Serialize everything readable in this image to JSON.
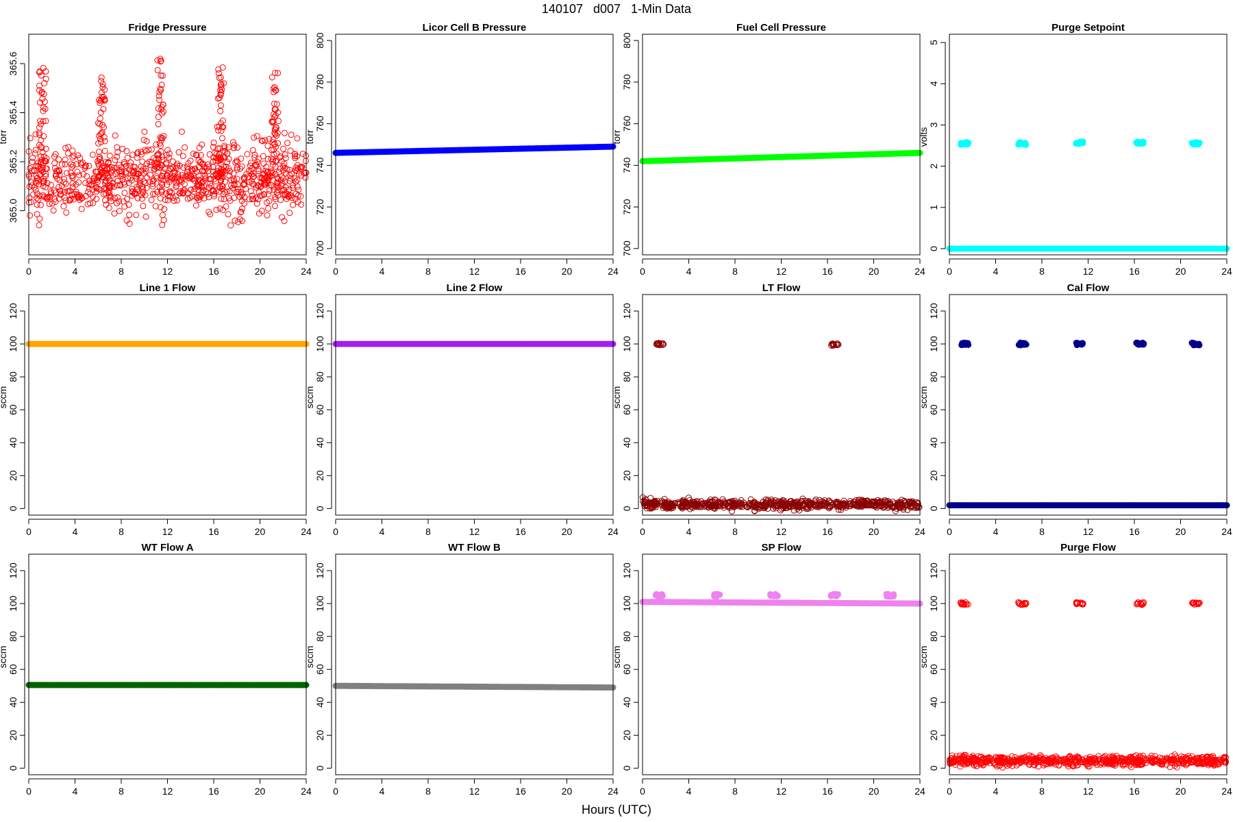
{
  "figure": {
    "title": "140107   d007   1-Min Data",
    "xlabel": "Hours (UTC)"
  },
  "chart_data": [
    {
      "type": "scatter",
      "title": "Fridge Pressure",
      "ylabel": "torr",
      "color": "#ff0000",
      "marker": "open-circle",
      "xlim": [
        0,
        24
      ],
      "ylim": [
        364.82,
        365.72
      ],
      "xticks": [
        0,
        4,
        8,
        12,
        16,
        20,
        24
      ],
      "yticks": [
        365.0,
        365.2,
        365.4,
        365.6
      ],
      "series": [
        {
          "base": 365.13,
          "noise": 0.07,
          "trend": 0,
          "spikes": [
            {
              "x": 1.2,
              "value": 365.6
            },
            {
              "x": 6.3,
              "value": 365.55
            },
            {
              "x": 11.4,
              "value": 365.63
            },
            {
              "x": 16.6,
              "value": 365.62
            },
            {
              "x": 21.3,
              "value": 365.57
            }
          ]
        }
      ]
    },
    {
      "type": "scatter",
      "title": "Licor Cell B Pressure",
      "ylabel": "torr",
      "color": "#0000ff",
      "marker": "filled-circle",
      "xlim": [
        0,
        24
      ],
      "ylim": [
        697,
        803
      ],
      "xticks": [
        0,
        4,
        8,
        12,
        16,
        20,
        24
      ],
      "yticks": [
        700,
        720,
        740,
        760,
        780,
        800
      ],
      "series": [
        {
          "x": [
            0,
            24
          ],
          "y": [
            746,
            749
          ]
        }
      ]
    },
    {
      "type": "scatter",
      "title": "Fuel Cell Pressure",
      "ylabel": "torr",
      "color": "#00ff00",
      "marker": "filled-circle",
      "xlim": [
        0,
        24
      ],
      "ylim": [
        697,
        803
      ],
      "xticks": [
        0,
        4,
        8,
        12,
        16,
        20,
        24
      ],
      "yticks": [
        700,
        720,
        740,
        760,
        780,
        800
      ],
      "series": [
        {
          "x": [
            0,
            24
          ],
          "y": [
            742,
            746
          ]
        }
      ]
    },
    {
      "type": "scatter",
      "title": "Purge Setpoint",
      "ylabel": "volts",
      "color": "#00ffff",
      "marker": "filled-circle",
      "xlim": [
        0,
        24
      ],
      "ylim": [
        -0.15,
        5.2
      ],
      "xticks": [
        0,
        4,
        8,
        12,
        16,
        20,
        24
      ],
      "yticks": [
        0,
        1,
        2,
        3,
        4,
        5
      ],
      "series": [
        {
          "x": [
            0,
            24
          ],
          "y": [
            0,
            0
          ]
        },
        {
          "clusters": [
            {
              "x": 1.3,
              "value": 2.55
            },
            {
              "x": 6.3,
              "value": 2.55
            },
            {
              "x": 11.3,
              "value": 2.57
            },
            {
              "x": 16.5,
              "value": 2.57
            },
            {
              "x": 21.3,
              "value": 2.55
            }
          ]
        }
      ]
    },
    {
      "type": "scatter",
      "title": "Line 1 Flow",
      "ylabel": "sccm",
      "color": "#ffa500",
      "marker": "filled-circle",
      "xlim": [
        0,
        24
      ],
      "ylim": [
        -4,
        130
      ],
      "xticks": [
        0,
        4,
        8,
        12,
        16,
        20,
        24
      ],
      "yticks": [
        0,
        20,
        40,
        60,
        80,
        100,
        120
      ],
      "series": [
        {
          "x": [
            0,
            24
          ],
          "y": [
            100,
            100
          ]
        }
      ]
    },
    {
      "type": "scatter",
      "title": "Line 2 Flow",
      "ylabel": "sccm",
      "color": "#a020f0",
      "marker": "filled-circle",
      "xlim": [
        0,
        24
      ],
      "ylim": [
        -4,
        130
      ],
      "xticks": [
        0,
        4,
        8,
        12,
        16,
        20,
        24
      ],
      "yticks": [
        0,
        20,
        40,
        60,
        80,
        100,
        120
      ],
      "series": [
        {
          "x": [
            0,
            24
          ],
          "y": [
            100,
            100
          ]
        }
      ]
    },
    {
      "type": "scatter",
      "title": "LT Flow",
      "ylabel": "sccm",
      "color": "#8b0000",
      "marker": "open-circle",
      "xlim": [
        0,
        24
      ],
      "ylim": [
        -4,
        130
      ],
      "xticks": [
        0,
        4,
        8,
        12,
        16,
        20,
        24
      ],
      "yticks": [
        0,
        20,
        40,
        60,
        80,
        100,
        120
      ],
      "series": [
        {
          "base": 2.5,
          "noise": 1.5,
          "gaps": [
            1.5,
            16.5
          ]
        },
        {
          "clusters": [
            {
              "x": 1.5,
              "value": 100
            },
            {
              "x": 16.6,
              "value": 99.5
            }
          ]
        }
      ]
    },
    {
      "type": "scatter",
      "title": "Cal Flow",
      "ylabel": "sccm",
      "color": "#00008b",
      "marker": "filled-circle",
      "xlim": [
        0,
        24
      ],
      "ylim": [
        -4,
        130
      ],
      "xticks": [
        0,
        4,
        8,
        12,
        16,
        20,
        24
      ],
      "yticks": [
        0,
        20,
        40,
        60,
        80,
        100,
        120
      ],
      "series": [
        {
          "x": [
            0,
            24
          ],
          "y": [
            2,
            2
          ]
        },
        {
          "clusters": [
            {
              "x": 1.3,
              "value": 100
            },
            {
              "x": 6.3,
              "value": 100
            },
            {
              "x": 11.3,
              "value": 100
            },
            {
              "x": 16.5,
              "value": 100
            },
            {
              "x": 21.3,
              "value": 100
            }
          ]
        }
      ]
    },
    {
      "type": "scatter",
      "title": "WT Flow A",
      "ylabel": "sccm",
      "color": "#006400",
      "marker": "filled-circle",
      "xlim": [
        0,
        24
      ],
      "ylim": [
        -4,
        130
      ],
      "xticks": [
        0,
        4,
        8,
        12,
        16,
        20,
        24
      ],
      "yticks": [
        0,
        20,
        40,
        60,
        80,
        100,
        120
      ],
      "series": [
        {
          "x": [
            0,
            24
          ],
          "y": [
            50.5,
            50.5
          ]
        }
      ]
    },
    {
      "type": "scatter",
      "title": "WT Flow B",
      "ylabel": "sccm",
      "color": "#808080",
      "marker": "filled-circle",
      "xlim": [
        0,
        24
      ],
      "ylim": [
        -4,
        130
      ],
      "xticks": [
        0,
        4,
        8,
        12,
        16,
        20,
        24
      ],
      "yticks": [
        0,
        20,
        40,
        60,
        80,
        100,
        120
      ],
      "series": [
        {
          "x": [
            0,
            24
          ],
          "y": [
            50,
            49
          ]
        }
      ]
    },
    {
      "type": "scatter",
      "title": "SP Flow",
      "ylabel": "sccm",
      "color": "#ee82ee",
      "marker": "filled-circle",
      "xlim": [
        0,
        24
      ],
      "ylim": [
        -4,
        130
      ],
      "xticks": [
        0,
        4,
        8,
        12,
        16,
        20,
        24
      ],
      "yticks": [
        0,
        20,
        40,
        60,
        80,
        100,
        120
      ],
      "series": [
        {
          "x": [
            0,
            24
          ],
          "y": [
            101,
            100
          ]
        },
        {
          "clusters": [
            {
              "x": 1.4,
              "value": 105
            },
            {
              "x": 6.4,
              "value": 105
            },
            {
              "x": 11.4,
              "value": 105
            },
            {
              "x": 16.6,
              "value": 105
            },
            {
              "x": 21.4,
              "value": 105
            }
          ]
        }
      ]
    },
    {
      "type": "scatter",
      "title": "Purge Flow",
      "ylabel": "sccm",
      "color": "#ff0000",
      "marker": "open-circle",
      "xlim": [
        0,
        24
      ],
      "ylim": [
        -4,
        130
      ],
      "xticks": [
        0,
        4,
        8,
        12,
        16,
        20,
        24
      ],
      "yticks": [
        0,
        20,
        40,
        60,
        80,
        100,
        120
      ],
      "series": [
        {
          "base": 4.5,
          "noise": 1.5
        },
        {
          "clusters": [
            {
              "x": 1.3,
              "value": 100
            },
            {
              "x": 6.3,
              "value": 100
            },
            {
              "x": 11.3,
              "value": 100
            },
            {
              "x": 16.5,
              "value": 100
            },
            {
              "x": 21.3,
              "value": 100
            }
          ]
        }
      ]
    }
  ]
}
